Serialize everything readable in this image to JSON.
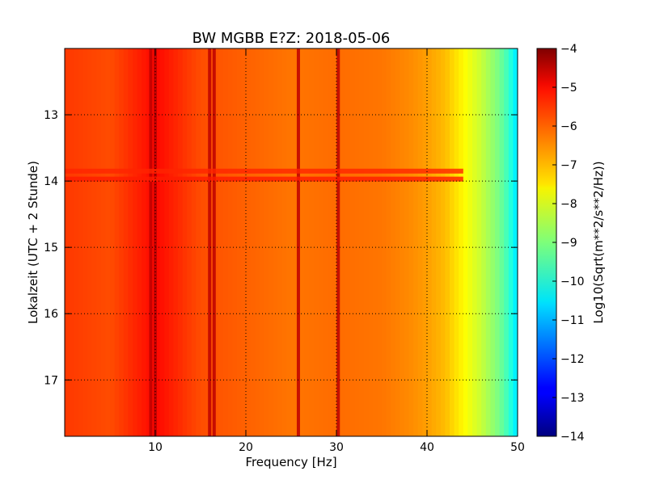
{
  "chart_data": {
    "type": "heatmap",
    "title": "BW MGBB E?Z: 2018-05-06",
    "xlabel": "Frequency [Hz]",
    "ylabel": "Lokalzeit (UTC + 2 Stunde)",
    "xlim": [
      0,
      50
    ],
    "ylim": [
      17.85,
      12.0
    ],
    "x_ticks": [
      10,
      20,
      30,
      40,
      50
    ],
    "x_tick_labels": [
      "10",
      "20",
      "30",
      "40",
      "50"
    ],
    "y_ticks": [
      13,
      14,
      15,
      16,
      17
    ],
    "y_tick_labels": [
      "13",
      "14",
      "15",
      "16",
      "17"
    ],
    "grid": true,
    "colormap": "jet",
    "colorbar": {
      "label": "Log10(Sqrt(m**2/s**2/Hz))",
      "range": [
        -14,
        -4
      ],
      "ticks": [
        -4,
        -5,
        -6,
        -7,
        -8,
        -9,
        -10,
        -11,
        -12,
        -13,
        -14
      ],
      "tick_labels": [
        "−4",
        "−5",
        "−6",
        "−7",
        "−8",
        "−9",
        "−10",
        "−11",
        "−12",
        "−13",
        "−14"
      ]
    },
    "profile": {
      "frequency_hz": [
        0,
        5,
        10,
        15,
        20,
        25,
        30,
        35,
        38,
        40,
        42,
        43,
        44,
        45,
        46,
        47,
        48,
        49,
        50
      ],
      "value": [
        -5.8,
        -6.0,
        -5.3,
        -6.0,
        -6.2,
        -6.4,
        -6.3,
        -6.4,
        -6.6,
        -6.8,
        -7.1,
        -7.4,
        -7.7,
        -8.0,
        -8.3,
        -8.7,
        -9.1,
        -9.7,
        -10.6
      ]
    },
    "spectral_lines_hz": [
      9.5,
      10.0,
      16.0,
      16.5,
      25.8,
      30.2
    ],
    "events": [
      {
        "time_h": 13.85,
        "freq_range_hz": [
          0,
          50
        ],
        "value": -5.6
      },
      {
        "time_h": 13.97,
        "freq_range_hz": [
          0,
          50
        ],
        "value": -5.5
      }
    ]
  }
}
